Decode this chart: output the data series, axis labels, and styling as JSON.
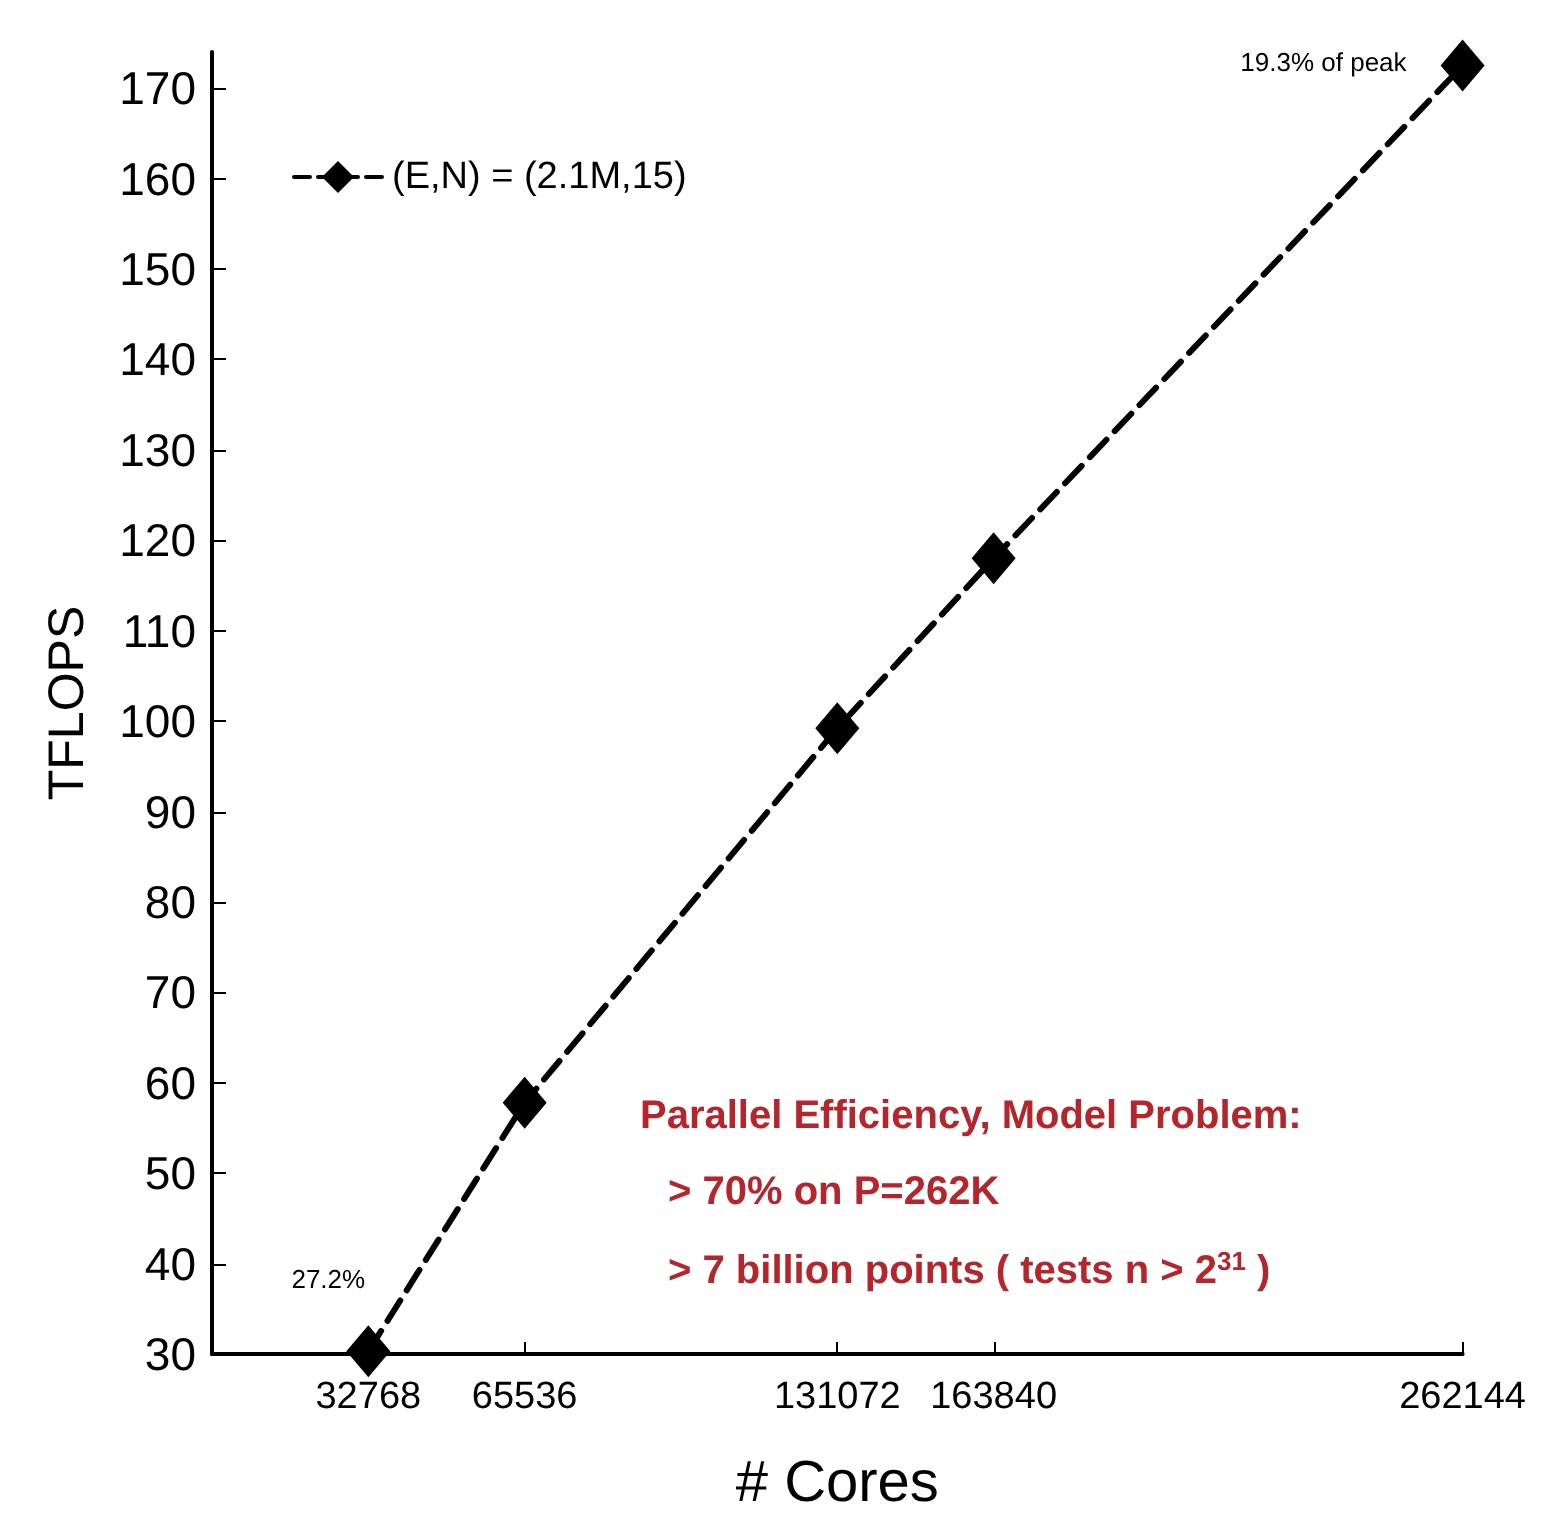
{
  "chart_data": {
    "type": "line",
    "xlabel": "# Cores",
    "ylabel": "TFLOPS",
    "x": [
      32768,
      65536,
      131072,
      163840,
      262144
    ],
    "series": [
      {
        "name": "(E,N) = (2.1M,15)",
        "color": "#000000",
        "values": [
          30.3,
          57.8,
          99.2,
          118,
          172.5
        ]
      }
    ],
    "xlim": [
      0,
      262144
    ],
    "xticks": [
      32768,
      65536,
      131072,
      163840,
      262144
    ],
    "ylim": [
      30,
      174
    ],
    "yticks": [
      30,
      40,
      50,
      60,
      70,
      80,
      90,
      100,
      110,
      120,
      130,
      140,
      150,
      160,
      170
    ],
    "marker": "diamond",
    "line_style": "dashed",
    "grid": false,
    "legend": "top left",
    "annotations": [
      {
        "text": "19.3% of peak",
        "x": 262144,
        "y": 172.5
      },
      {
        "text": "27.2%",
        "x": 32768,
        "y": 30.3
      },
      "Parallel Efficiency, Model Problem:",
      "> 70% on P=262K",
      "> 7 billion points ( tests n > 2$^{31}$ )"
    ]
  }
}
